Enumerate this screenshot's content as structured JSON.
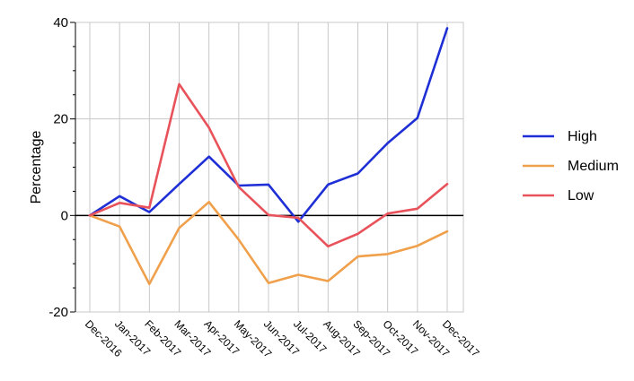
{
  "chart_data": {
    "type": "line",
    "title": "",
    "xlabel": "",
    "ylabel": "Percentage",
    "ylim": [
      -20,
      40
    ],
    "yticks": [
      -20,
      0,
      20,
      40
    ],
    "grid": true,
    "legend_position": "right",
    "categories": [
      "Dec-2016",
      "Jan-2017",
      "Feb-2017",
      "Mar-2017",
      "Apr-2017",
      "May-2017",
      "Jun-2017",
      "Jul-2017",
      "Aug-2017",
      "Sep-2017",
      "Oct-2017",
      "Nov-2017",
      "Dec-2017"
    ],
    "series": [
      {
        "name": "High",
        "color": "#1f2fd6",
        "values": [
          0,
          4.0,
          0.7,
          6.5,
          12.2,
          6.2,
          6.4,
          -1.3,
          6.4,
          8.7,
          15.0,
          20.2,
          38.8
        ]
      },
      {
        "name": "Medium",
        "color": "#f0a04b",
        "values": [
          0,
          -2.3,
          -14.2,
          -2.6,
          2.8,
          -5.0,
          -14.0,
          -12.3,
          -13.6,
          -8.5,
          -8.0,
          -6.3,
          -3.3
        ]
      },
      {
        "name": "Low",
        "color": "#e8525a",
        "values": [
          0,
          2.6,
          1.6,
          27.2,
          18.2,
          5.9,
          0.1,
          -0.5,
          -6.4,
          -3.8,
          0.4,
          1.4,
          6.5
        ]
      }
    ]
  }
}
